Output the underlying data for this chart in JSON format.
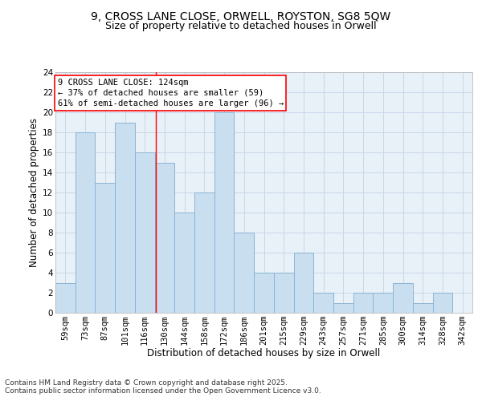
{
  "title_line1": "9, CROSS LANE CLOSE, ORWELL, ROYSTON, SG8 5QW",
  "title_line2": "Size of property relative to detached houses in Orwell",
  "xlabel": "Distribution of detached houses by size in Orwell",
  "ylabel": "Number of detached properties",
  "categories": [
    "59sqm",
    "73sqm",
    "87sqm",
    "101sqm",
    "116sqm",
    "130sqm",
    "144sqm",
    "158sqm",
    "172sqm",
    "186sqm",
    "201sqm",
    "215sqm",
    "229sqm",
    "243sqm",
    "257sqm",
    "271sqm",
    "285sqm",
    "300sqm",
    "314sqm",
    "328sqm",
    "342sqm"
  ],
  "values": [
    3,
    18,
    13,
    19,
    16,
    15,
    10,
    12,
    20,
    8,
    4,
    4,
    6,
    2,
    1,
    2,
    2,
    3,
    1,
    2,
    0
  ],
  "bar_color": "#c9dff0",
  "bar_edgecolor": "#8ab4d4",
  "ylim": [
    0,
    24
  ],
  "yticks": [
    0,
    2,
    4,
    6,
    8,
    10,
    12,
    14,
    16,
    18,
    20,
    22,
    24
  ],
  "grid_color": "#c8d8e8",
  "annotation_line1": "9 CROSS LANE CLOSE: 124sqm",
  "annotation_line2": "← 37% of detached houses are smaller (59)",
  "annotation_line3": "61% of semi-detached houses are larger (96) →",
  "background_color": "#e8f0f8",
  "footer_text": "Contains HM Land Registry data © Crown copyright and database right 2025.\nContains public sector information licensed under the Open Government Licence v3.0.",
  "title_fontsize": 10,
  "subtitle_fontsize": 9,
  "axis_label_fontsize": 8.5,
  "tick_fontsize": 7.5,
  "annotation_fontsize": 7.5,
  "footer_fontsize": 6.5
}
